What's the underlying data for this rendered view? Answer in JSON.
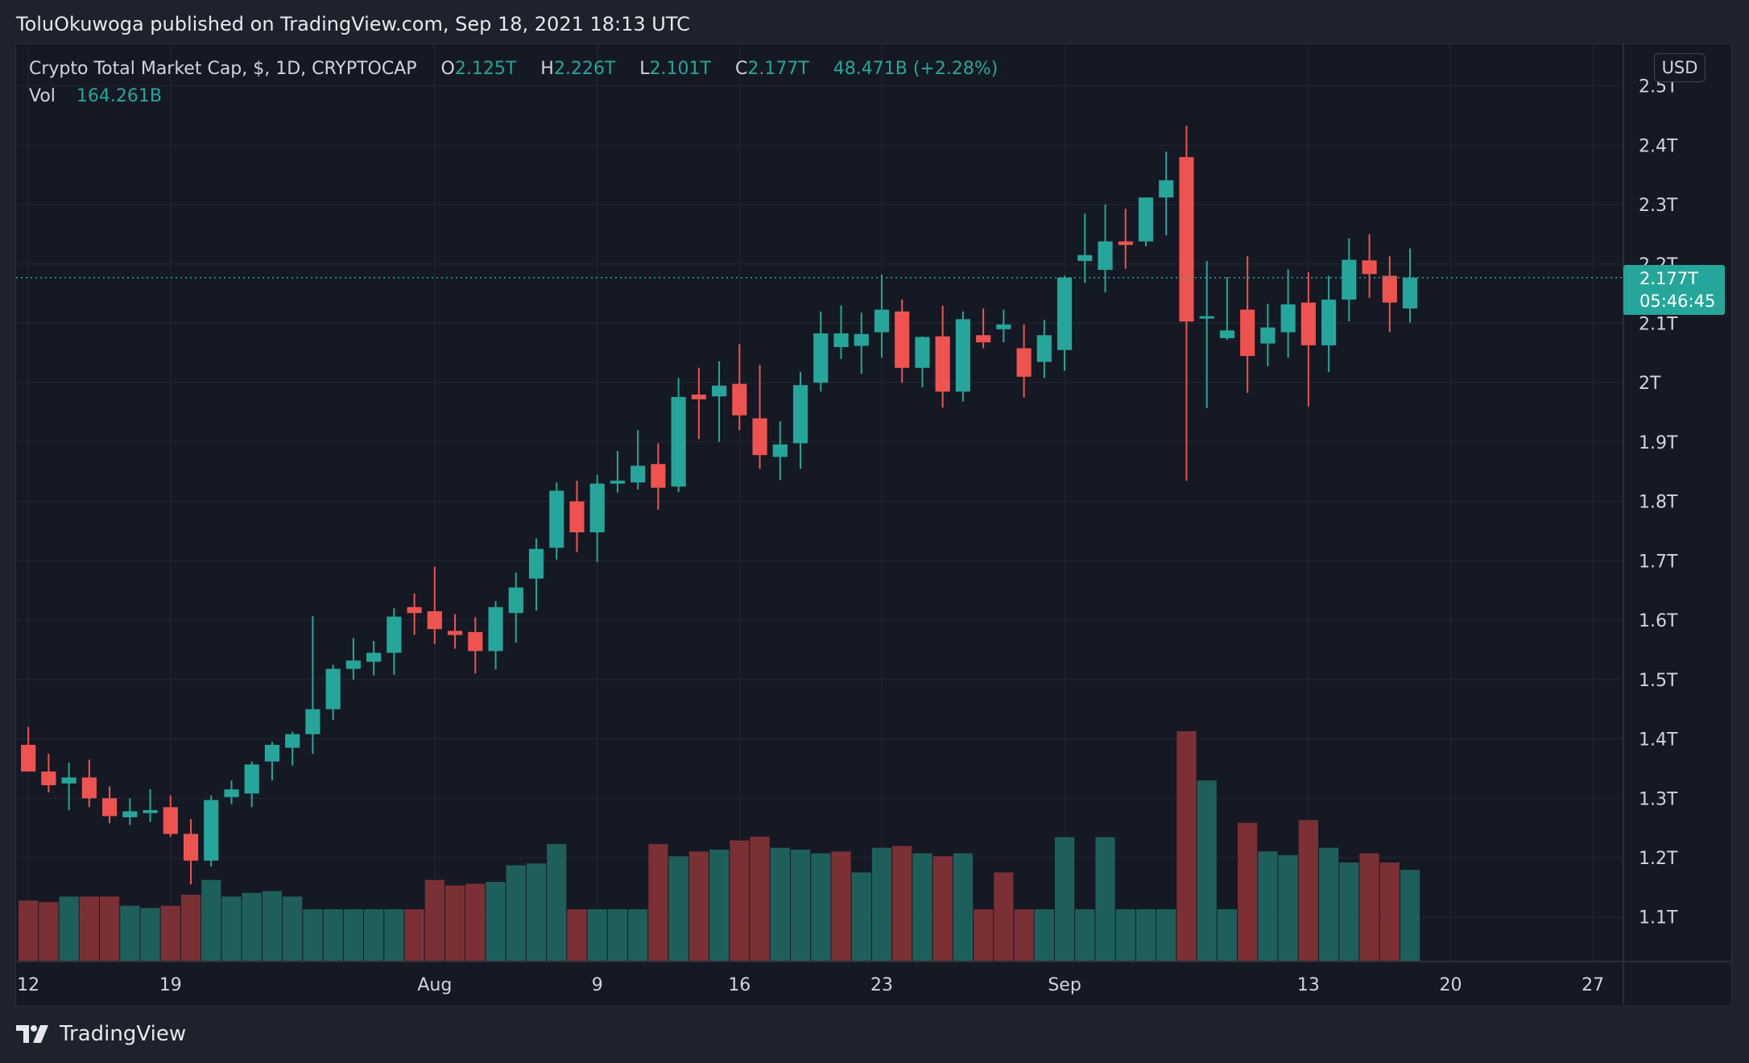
{
  "header": {
    "attribution": "ToluOkuwoga published on TradingView.com, Sep 18, 2021 18:13 UTC"
  },
  "legend": {
    "symbol": "Crypto Total Market Cap, $, 1D, CRYPTOCAP",
    "open_label": "O",
    "open": "2.125T",
    "high_label": "H",
    "high": "2.226T",
    "low_label": "L",
    "low": "2.101T",
    "close_label": "C",
    "close": "2.177T",
    "change": "48.471B (+2.28%)",
    "volume_label": "Vol",
    "volume": "164.261B"
  },
  "currency": "USD",
  "last_price": {
    "price": "2.177T",
    "countdown": "05:46:45"
  },
  "footer": {
    "brand": "TradingView"
  },
  "colors": {
    "up": "#26a69a",
    "down": "#ef5350",
    "volume_up": "#1f5f5b",
    "volume_down": "#7b3035",
    "grid": "#232735",
    "background": "#151924",
    "text": "#d1d4dc"
  },
  "chart_data": {
    "type": "candlestick",
    "title": "Crypto Total Market Cap, $, 1D, CRYPTOCAP",
    "y_axis": {
      "unit": "T",
      "ticks": [
        "2.5T",
        "2.4T",
        "2.3T",
        "2.2T",
        "2.1T",
        "2T",
        "1.9T",
        "1.8T",
        "1.7T",
        "1.6T",
        "1.5T",
        "1.4T",
        "1.3T",
        "1.2T",
        "1.1T"
      ],
      "tick_values": [
        2.5,
        2.4,
        2.3,
        2.2,
        2.1,
        2.0,
        1.9,
        1.8,
        1.7,
        1.6,
        1.5,
        1.4,
        1.3,
        1.2,
        1.1
      ],
      "range": [
        1.025,
        2.57
      ]
    },
    "x_axis": {
      "ticks": [
        {
          "label": "12",
          "day": 0
        },
        {
          "label": "19",
          "day": 7
        },
        {
          "label": "Aug",
          "day": 20
        },
        {
          "label": "9",
          "day": 28
        },
        {
          "label": "16",
          "day": 35
        },
        {
          "label": "23",
          "day": 42
        },
        {
          "label": "Sep",
          "day": 51
        },
        {
          "label": "13",
          "day": 63
        },
        {
          "label": "20",
          "day": 70
        },
        {
          "label": "27",
          "day": 77
        }
      ],
      "range_days": [
        -0.6,
        78.5
      ]
    },
    "grid": true,
    "last_price_line": 2.177,
    "candles": [
      {
        "d": 0,
        "o": 1.39,
        "h": 1.42,
        "l": 1.35,
        "c": 1.345
      },
      {
        "d": 1,
        "o": 1.345,
        "h": 1.375,
        "l": 1.31,
        "c": 1.322
      },
      {
        "d": 2,
        "o": 1.325,
        "h": 1.36,
        "l": 1.28,
        "c": 1.335
      },
      {
        "d": 3,
        "o": 1.335,
        "h": 1.365,
        "l": 1.285,
        "c": 1.3
      },
      {
        "d": 4,
        "o": 1.3,
        "h": 1.32,
        "l": 1.258,
        "c": 1.27
      },
      {
        "d": 5,
        "o": 1.268,
        "h": 1.3,
        "l": 1.255,
        "c": 1.278
      },
      {
        "d": 6,
        "o": 1.275,
        "h": 1.315,
        "l": 1.26,
        "c": 1.28
      },
      {
        "d": 7,
        "o": 1.285,
        "h": 1.305,
        "l": 1.235,
        "c": 1.24
      },
      {
        "d": 8,
        "o": 1.24,
        "h": 1.265,
        "l": 1.155,
        "c": 1.195
      },
      {
        "d": 9,
        "o": 1.195,
        "h": 1.305,
        "l": 1.185,
        "c": 1.297
      },
      {
        "d": 10,
        "o": 1.302,
        "h": 1.33,
        "l": 1.29,
        "c": 1.315
      },
      {
        "d": 11,
        "o": 1.308,
        "h": 1.362,
        "l": 1.285,
        "c": 1.357
      },
      {
        "d": 12,
        "o": 1.362,
        "h": 1.395,
        "l": 1.33,
        "c": 1.39
      },
      {
        "d": 13,
        "o": 1.385,
        "h": 1.412,
        "l": 1.355,
        "c": 1.408
      },
      {
        "d": 14,
        "o": 1.408,
        "h": 1.607,
        "l": 1.375,
        "c": 1.45
      },
      {
        "d": 15,
        "o": 1.45,
        "h": 1.525,
        "l": 1.432,
        "c": 1.518
      },
      {
        "d": 16,
        "o": 1.518,
        "h": 1.57,
        "l": 1.5,
        "c": 1.532
      },
      {
        "d": 17,
        "o": 1.53,
        "h": 1.565,
        "l": 1.507,
        "c": 1.545
      },
      {
        "d": 18,
        "o": 1.545,
        "h": 1.62,
        "l": 1.508,
        "c": 1.606
      },
      {
        "d": 19,
        "o": 1.622,
        "h": 1.645,
        "l": 1.575,
        "c": 1.612
      },
      {
        "d": 20,
        "o": 1.615,
        "h": 1.69,
        "l": 1.56,
        "c": 1.585
      },
      {
        "d": 21,
        "o": 1.582,
        "h": 1.61,
        "l": 1.552,
        "c": 1.575
      },
      {
        "d": 22,
        "o": 1.58,
        "h": 1.605,
        "l": 1.51,
        "c": 1.548
      },
      {
        "d": 23,
        "o": 1.548,
        "h": 1.632,
        "l": 1.517,
        "c": 1.622
      },
      {
        "d": 24,
        "o": 1.612,
        "h": 1.68,
        "l": 1.562,
        "c": 1.655
      },
      {
        "d": 25,
        "o": 1.67,
        "h": 1.738,
        "l": 1.616,
        "c": 1.72
      },
      {
        "d": 26,
        "o": 1.722,
        "h": 1.832,
        "l": 1.702,
        "c": 1.818
      },
      {
        "d": 27,
        "o": 1.8,
        "h": 1.835,
        "l": 1.715,
        "c": 1.748
      },
      {
        "d": 28,
        "o": 1.748,
        "h": 1.845,
        "l": 1.698,
        "c": 1.83
      },
      {
        "d": 29,
        "o": 1.83,
        "h": 1.885,
        "l": 1.815,
        "c": 1.835
      },
      {
        "d": 30,
        "o": 1.832,
        "h": 1.92,
        "l": 1.82,
        "c": 1.86
      },
      {
        "d": 31,
        "o": 1.863,
        "h": 1.898,
        "l": 1.786,
        "c": 1.823
      },
      {
        "d": 32,
        "o": 1.825,
        "h": 2.008,
        "l": 1.816,
        "c": 1.976
      },
      {
        "d": 33,
        "o": 1.98,
        "h": 2.025,
        "l": 1.905,
        "c": 1.972
      },
      {
        "d": 34,
        "o": 1.977,
        "h": 2.036,
        "l": 1.9,
        "c": 1.995
      },
      {
        "d": 35,
        "o": 1.998,
        "h": 2.065,
        "l": 1.92,
        "c": 1.945
      },
      {
        "d": 36,
        "o": 1.94,
        "h": 2.03,
        "l": 1.855,
        "c": 1.878
      },
      {
        "d": 37,
        "o": 1.875,
        "h": 1.935,
        "l": 1.836,
        "c": 1.896
      },
      {
        "d": 38,
        "o": 1.898,
        "h": 2.018,
        "l": 1.855,
        "c": 1.996
      },
      {
        "d": 39,
        "o": 2.0,
        "h": 2.12,
        "l": 1.985,
        "c": 2.083
      },
      {
        "d": 40,
        "o": 2.06,
        "h": 2.13,
        "l": 2.04,
        "c": 2.083
      },
      {
        "d": 41,
        "o": 2.062,
        "h": 2.118,
        "l": 2.015,
        "c": 2.082
      },
      {
        "d": 42,
        "o": 2.085,
        "h": 2.182,
        "l": 2.042,
        "c": 2.123
      },
      {
        "d": 43,
        "o": 2.12,
        "h": 2.14,
        "l": 2.0,
        "c": 2.025
      },
      {
        "d": 44,
        "o": 2.025,
        "h": 2.078,
        "l": 1.992,
        "c": 2.077
      },
      {
        "d": 45,
        "o": 2.078,
        "h": 2.13,
        "l": 1.958,
        "c": 1.985
      },
      {
        "d": 46,
        "o": 1.985,
        "h": 2.12,
        "l": 1.968,
        "c": 2.107
      },
      {
        "d": 47,
        "o": 2.08,
        "h": 2.125,
        "l": 2.058,
        "c": 2.068
      },
      {
        "d": 48,
        "o": 2.09,
        "h": 2.123,
        "l": 2.068,
        "c": 2.098
      },
      {
        "d": 49,
        "o": 2.058,
        "h": 2.098,
        "l": 1.975,
        "c": 2.01
      },
      {
        "d": 50,
        "o": 2.035,
        "h": 2.106,
        "l": 2.008,
        "c": 2.08
      },
      {
        "d": 51,
        "o": 2.055,
        "h": 2.18,
        "l": 2.02,
        "c": 2.177
      },
      {
        "d": 52,
        "o": 2.205,
        "h": 2.285,
        "l": 2.168,
        "c": 2.215
      },
      {
        "d": 53,
        "o": 2.19,
        "h": 2.3,
        "l": 2.152,
        "c": 2.238
      },
      {
        "d": 54,
        "o": 2.238,
        "h": 2.293,
        "l": 2.192,
        "c": 2.232
      },
      {
        "d": 55,
        "o": 2.238,
        "h": 2.31,
        "l": 2.23,
        "c": 2.312
      },
      {
        "d": 56,
        "o": 2.312,
        "h": 2.389,
        "l": 2.248,
        "c": 2.341
      },
      {
        "d": 57,
        "o": 2.38,
        "h": 2.433,
        "l": 1.835,
        "c": 2.103
      },
      {
        "d": 58,
        "o": 2.108,
        "h": 2.205,
        "l": 1.957,
        "c": 2.112
      },
      {
        "d": 59,
        "o": 2.075,
        "h": 2.178,
        "l": 2.072,
        "c": 2.088
      },
      {
        "d": 60,
        "o": 2.123,
        "h": 2.213,
        "l": 1.983,
        "c": 2.045
      },
      {
        "d": 61,
        "o": 2.066,
        "h": 2.133,
        "l": 2.028,
        "c": 2.093
      },
      {
        "d": 62,
        "o": 2.085,
        "h": 2.191,
        "l": 2.042,
        "c": 2.132
      },
      {
        "d": 63,
        "o": 2.135,
        "h": 2.186,
        "l": 1.96,
        "c": 2.063
      },
      {
        "d": 64,
        "o": 2.063,
        "h": 2.18,
        "l": 2.018,
        "c": 2.14
      },
      {
        "d": 65,
        "o": 2.14,
        "h": 2.243,
        "l": 2.103,
        "c": 2.207
      },
      {
        "d": 66,
        "o": 2.206,
        "h": 2.25,
        "l": 2.143,
        "c": 2.183
      },
      {
        "d": 67,
        "o": 2.18,
        "h": 2.213,
        "l": 2.085,
        "c": 2.135
      },
      {
        "d": 68,
        "o": 2.125,
        "h": 2.226,
        "l": 2.101,
        "c": 2.177
      }
    ],
    "volume_axis_max": 1.0,
    "volume": [
      {
        "d": 0,
        "v": 0.265,
        "up": false
      },
      {
        "d": 1,
        "v": 0.258,
        "up": false
      },
      {
        "d": 2,
        "v": 0.282,
        "up": true
      },
      {
        "d": 3,
        "v": 0.282,
        "up": false
      },
      {
        "d": 4,
        "v": 0.282,
        "up": false
      },
      {
        "d": 5,
        "v": 0.242,
        "up": true
      },
      {
        "d": 6,
        "v": 0.232,
        "up": true
      },
      {
        "d": 7,
        "v": 0.242,
        "up": false
      },
      {
        "d": 8,
        "v": 0.29,
        "up": false
      },
      {
        "d": 9,
        "v": 0.354,
        "up": true
      },
      {
        "d": 10,
        "v": 0.282,
        "up": true
      },
      {
        "d": 11,
        "v": 0.298,
        "up": true
      },
      {
        "d": 12,
        "v": 0.306,
        "up": true
      },
      {
        "d": 13,
        "v": 0.282,
        "up": true
      },
      {
        "d": 14,
        "v": 0.227,
        "up": true
      },
      {
        "d": 15,
        "v": 0.227,
        "up": true
      },
      {
        "d": 16,
        "v": 0.227,
        "up": true
      },
      {
        "d": 17,
        "v": 0.227,
        "up": true
      },
      {
        "d": 18,
        "v": 0.227,
        "up": true
      },
      {
        "d": 19,
        "v": 0.227,
        "up": false
      },
      {
        "d": 20,
        "v": 0.354,
        "up": false
      },
      {
        "d": 21,
        "v": 0.33,
        "up": false
      },
      {
        "d": 22,
        "v": 0.338,
        "up": false
      },
      {
        "d": 23,
        "v": 0.346,
        "up": true
      },
      {
        "d": 24,
        "v": 0.418,
        "up": true
      },
      {
        "d": 25,
        "v": 0.426,
        "up": true
      },
      {
        "d": 26,
        "v": 0.51,
        "up": true
      },
      {
        "d": 27,
        "v": 0.227,
        "up": false
      },
      {
        "d": 28,
        "v": 0.227,
        "up": true
      },
      {
        "d": 29,
        "v": 0.227,
        "up": true
      },
      {
        "d": 30,
        "v": 0.227,
        "up": true
      },
      {
        "d": 31,
        "v": 0.51,
        "up": false
      },
      {
        "d": 32,
        "v": 0.457,
        "up": true
      },
      {
        "d": 33,
        "v": 0.478,
        "up": false
      },
      {
        "d": 34,
        "v": 0.486,
        "up": true
      },
      {
        "d": 35,
        "v": 0.526,
        "up": false
      },
      {
        "d": 36,
        "v": 0.542,
        "up": false
      },
      {
        "d": 37,
        "v": 0.494,
        "up": true
      },
      {
        "d": 38,
        "v": 0.486,
        "up": true
      },
      {
        "d": 39,
        "v": 0.47,
        "up": true
      },
      {
        "d": 40,
        "v": 0.478,
        "up": false
      },
      {
        "d": 41,
        "v": 0.387,
        "up": true
      },
      {
        "d": 42,
        "v": 0.494,
        "up": true
      },
      {
        "d": 43,
        "v": 0.502,
        "up": false
      },
      {
        "d": 44,
        "v": 0.47,
        "up": true
      },
      {
        "d": 45,
        "v": 0.457,
        "up": false
      },
      {
        "d": 46,
        "v": 0.47,
        "up": true
      },
      {
        "d": 47,
        "v": 0.227,
        "up": false
      },
      {
        "d": 48,
        "v": 0.387,
        "up": false
      },
      {
        "d": 49,
        "v": 0.227,
        "up": false
      },
      {
        "d": 50,
        "v": 0.227,
        "up": true
      },
      {
        "d": 51,
        "v": 0.54,
        "up": true
      },
      {
        "d": 52,
        "v": 0.227,
        "up": true
      },
      {
        "d": 53,
        "v": 0.54,
        "up": true
      },
      {
        "d": 54,
        "v": 0.227,
        "up": true
      },
      {
        "d": 55,
        "v": 0.227,
        "up": true
      },
      {
        "d": 56,
        "v": 0.227,
        "up": true
      },
      {
        "d": 57,
        "v": 1.0,
        "up": false
      },
      {
        "d": 58,
        "v": 0.786,
        "up": true
      },
      {
        "d": 59,
        "v": 0.227,
        "up": true
      },
      {
        "d": 60,
        "v": 0.602,
        "up": false
      },
      {
        "d": 61,
        "v": 0.478,
        "up": true
      },
      {
        "d": 62,
        "v": 0.462,
        "up": true
      },
      {
        "d": 63,
        "v": 0.614,
        "up": false
      },
      {
        "d": 64,
        "v": 0.494,
        "up": true
      },
      {
        "d": 65,
        "v": 0.43,
        "up": true
      },
      {
        "d": 66,
        "v": 0.47,
        "up": false
      },
      {
        "d": 67,
        "v": 0.43,
        "up": false
      },
      {
        "d": 68,
        "v": 0.398,
        "up": true
      }
    ]
  }
}
